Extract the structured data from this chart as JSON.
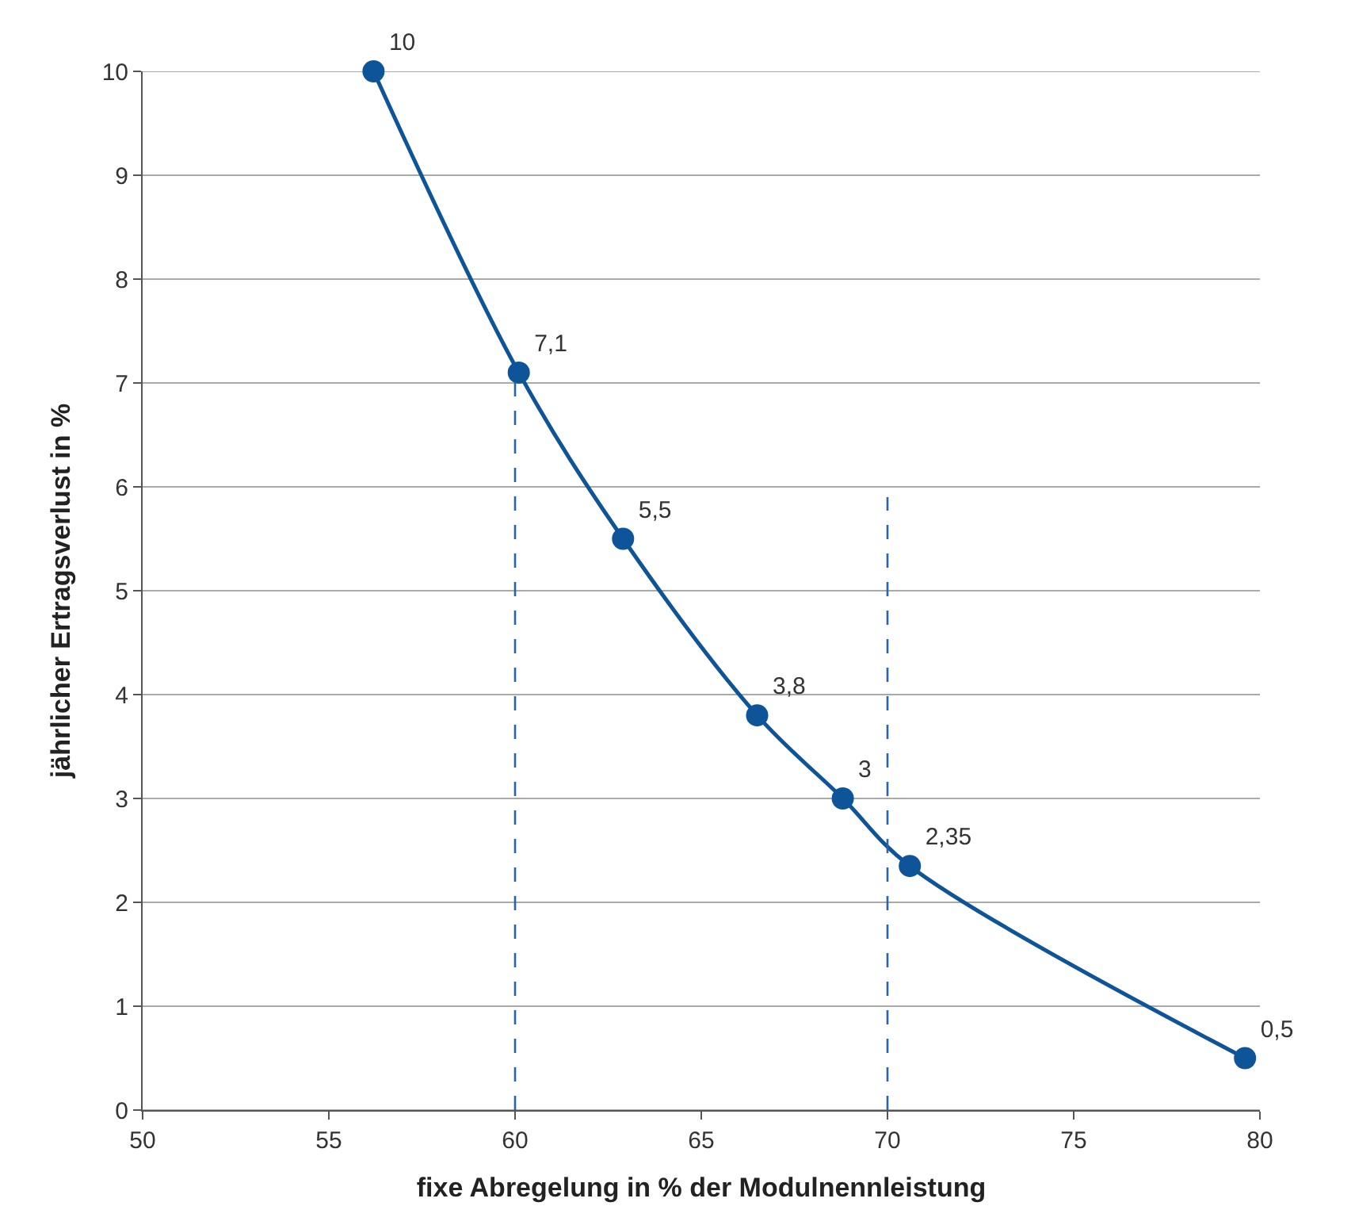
{
  "chart_data": {
    "type": "line",
    "xlabel": "fixe Abregelung in % der Modulnennleistung",
    "ylabel": "jährlicher Ertragsverlust in %",
    "xlim": [
      50,
      80
    ],
    "xticks": [
      50,
      55,
      60,
      65,
      70,
      75,
      80
    ],
    "ylim": [
      0,
      10
    ],
    "yticks": [
      0,
      1,
      2,
      3,
      4,
      5,
      6,
      7,
      8,
      9,
      10
    ],
    "grid": "y",
    "legend": false,
    "series": [
      {
        "color": "#0d5499",
        "marker": "circle",
        "line_style": "solid",
        "data_labels": true,
        "x": [
          56.2,
          60.1,
          62.9,
          66.5,
          68.8,
          70.6,
          79.6
        ],
        "values": [
          10,
          7.1,
          5.5,
          3.8,
          3,
          2.35,
          0.5
        ],
        "value_labels": [
          "10",
          "7,1",
          "5,5",
          "3,8",
          "3",
          "2,35",
          "0,5"
        ]
      },
      {
        "color": "#2a64a8",
        "marker": "none",
        "line_style": "dashed",
        "x": [
          60,
          60
        ],
        "values": [
          0,
          7.1
        ]
      },
      {
        "color": "#2a64a8",
        "marker": "none",
        "line_style": "dashed",
        "x": [
          70,
          70
        ],
        "values": [
          0,
          5.9
        ]
      }
    ]
  }
}
